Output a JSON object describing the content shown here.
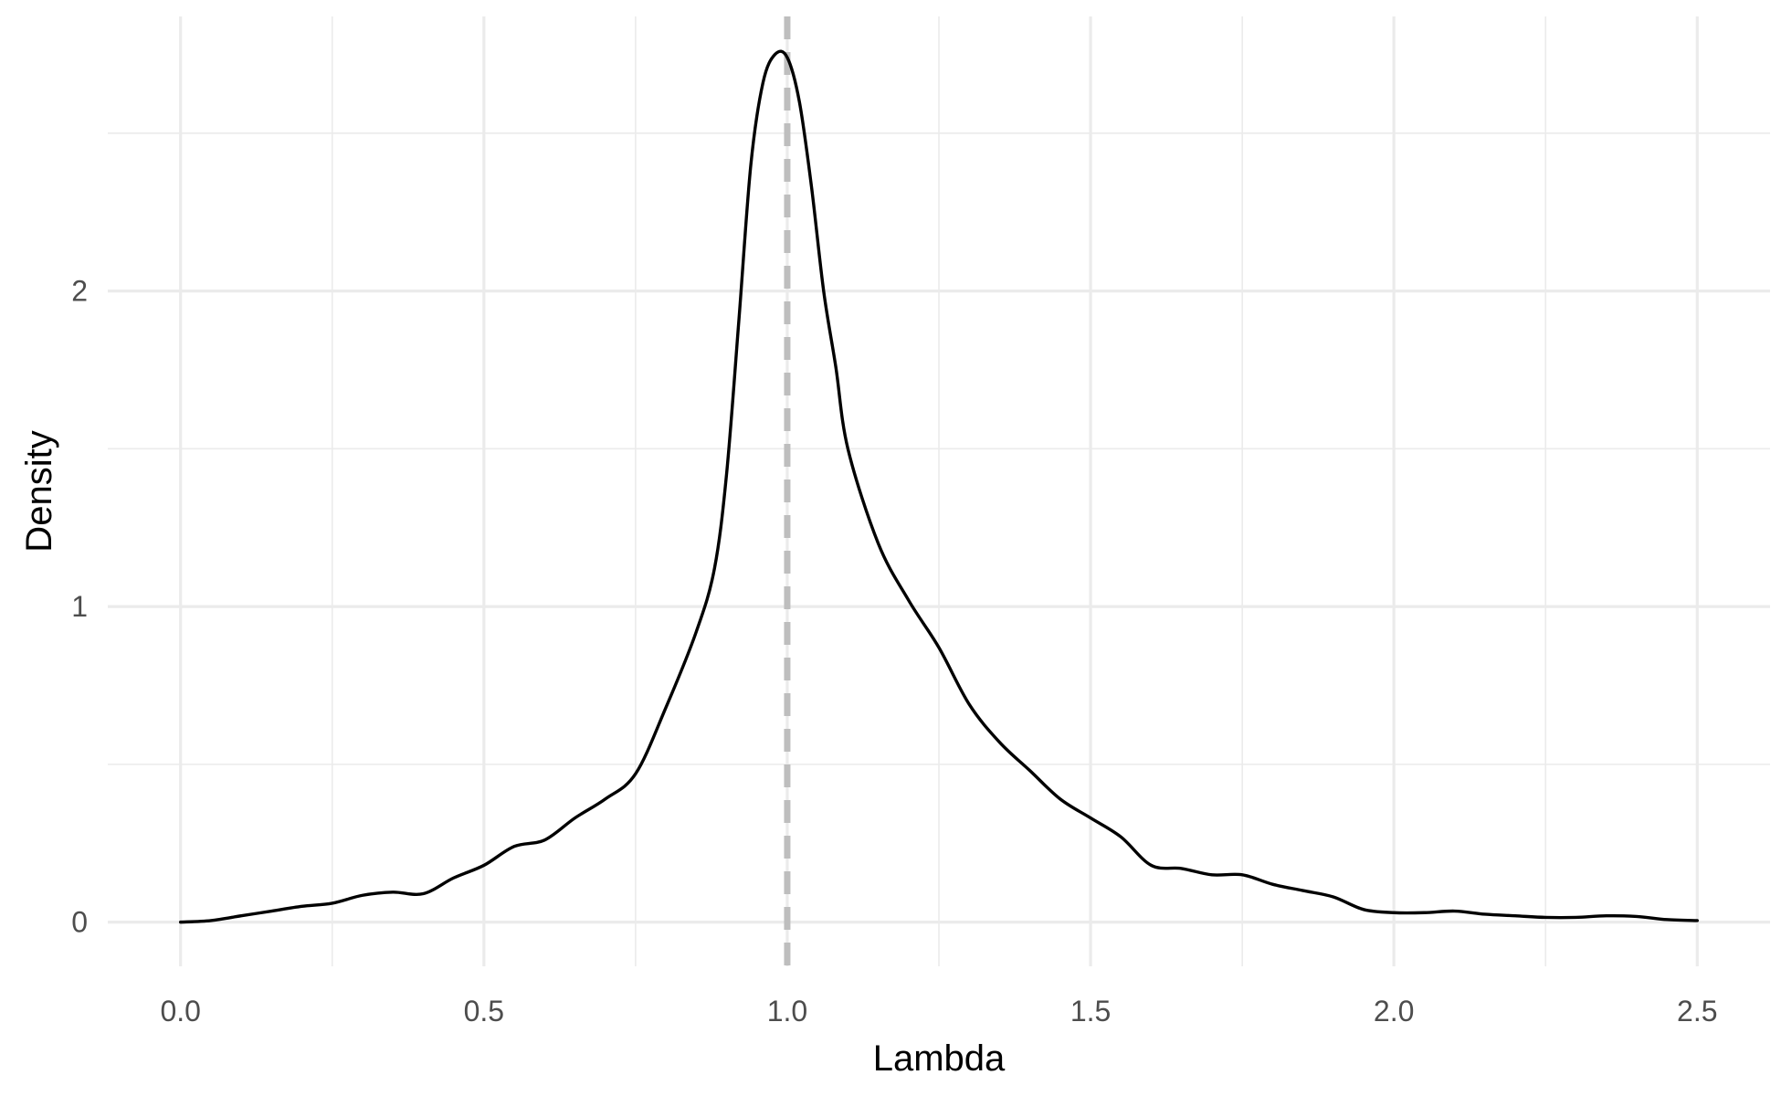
{
  "chart_data": {
    "type": "line",
    "xlabel": "Lambda",
    "ylabel": "Density",
    "xlim": [
      -0.12,
      2.62
    ],
    "ylim": [
      -0.14,
      2.87
    ],
    "x_ticks": [
      0.0,
      0.5,
      1.0,
      1.5,
      2.0,
      2.5
    ],
    "x_tick_labels": [
      "0.0",
      "0.5",
      "1.0",
      "1.5",
      "2.0",
      "2.5"
    ],
    "y_ticks": [
      0,
      1,
      2
    ],
    "y_tick_labels": [
      "0",
      "1",
      "2"
    ],
    "x_minor_ticks": [
      0.25,
      0.75,
      1.25,
      1.75,
      2.25
    ],
    "y_minor_ticks": [
      0.5,
      1.5,
      2.5
    ],
    "grid": true,
    "reference_line": {
      "x": 1.0,
      "style": "dashed",
      "color": "#bebebe"
    },
    "line_color": "#000000",
    "series": [
      {
        "x": [
          0.0,
          0.05,
          0.1,
          0.15,
          0.2,
          0.25,
          0.3,
          0.35,
          0.4,
          0.45,
          0.5,
          0.55,
          0.6,
          0.65,
          0.7,
          0.75,
          0.8,
          0.85,
          0.88,
          0.9,
          0.92,
          0.94,
          0.96,
          0.98,
          1.0,
          1.02,
          1.04,
          1.06,
          1.08,
          1.1,
          1.15,
          1.2,
          1.25,
          1.3,
          1.35,
          1.4,
          1.45,
          1.5,
          1.55,
          1.6,
          1.65,
          1.7,
          1.75,
          1.8,
          1.85,
          1.9,
          1.95,
          2.0,
          2.05,
          2.1,
          2.15,
          2.2,
          2.25,
          2.3,
          2.35,
          2.4,
          2.45,
          2.5
        ],
        "y": [
          0.0,
          0.005,
          0.02,
          0.035,
          0.05,
          0.06,
          0.085,
          0.095,
          0.09,
          0.14,
          0.18,
          0.24,
          0.26,
          0.33,
          0.39,
          0.47,
          0.68,
          0.92,
          1.12,
          1.42,
          1.9,
          2.4,
          2.66,
          2.75,
          2.74,
          2.6,
          2.33,
          2.0,
          1.76,
          1.5,
          1.2,
          1.02,
          0.87,
          0.69,
          0.57,
          0.48,
          0.39,
          0.33,
          0.27,
          0.18,
          0.17,
          0.15,
          0.15,
          0.12,
          0.1,
          0.08,
          0.04,
          0.03,
          0.03,
          0.035,
          0.025,
          0.02,
          0.015,
          0.015,
          0.02,
          0.018,
          0.008,
          0.005
        ]
      }
    ]
  }
}
